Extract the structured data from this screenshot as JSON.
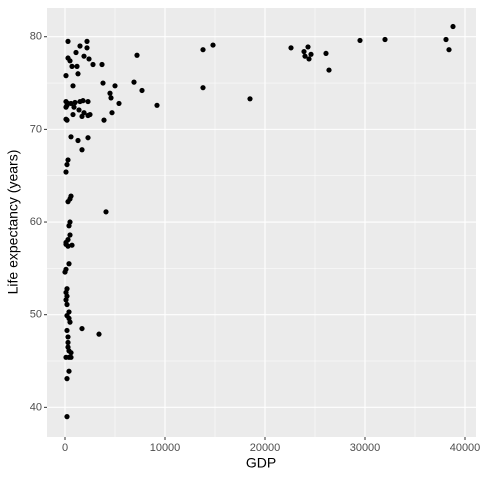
{
  "chart_data": {
    "type": "scatter",
    "x_label": "GDP",
    "y_label": "Life expectancy (years)",
    "color": "#000000",
    "grid": true,
    "xlim": [
      -1800,
      41100
    ],
    "ylim": [
      36.8,
      83.1
    ],
    "xticks": [
      0,
      10000,
      20000,
      30000,
      40000
    ],
    "yticks": [
      40,
      50,
      60,
      70,
      80
    ],
    "x": [
      38800,
      38100,
      38400,
      32000,
      29500,
      26400,
      26100,
      24600,
      24300,
      24400,
      23900,
      24000,
      22600,
      18500,
      14800,
      13800,
      13800,
      9200,
      7700,
      7200,
      6900,
      5400,
      5000,
      4600,
      4500,
      4700,
      3700,
      3800,
      3900,
      4100,
      3400,
      1700,
      2800,
      2300,
      2500,
      2200,
      2200,
      2400,
      2300,
      2300,
      1500,
      1900,
      1100,
      1200,
      1300,
      1800,
      1500,
      1400,
      1700,
      1900,
      1700,
      1300,
      1000,
      900,
      800,
      800,
      600,
      600,
      700,
      500,
      300,
      300,
      100,
      100,
      100,
      200,
      100,
      200,
      300,
      300,
      200,
      100,
      600,
      500,
      300,
      500,
      400,
      500,
      300,
      100,
      300,
      700,
      100,
      400,
      100,
      0,
      200,
      100,
      200,
      100,
      200,
      400,
      200,
      400,
      500,
      200,
      300,
      300,
      300,
      400,
      600,
      100,
      400,
      600,
      400,
      200,
      200
    ],
    "y": [
      81.1,
      79.7,
      78.6,
      79.7,
      79.6,
      76.4,
      78.2,
      78.1,
      78.9,
      77.6,
      78.4,
      77.9,
      78.8,
      73.3,
      79.1,
      78.6,
      74.5,
      72.6,
      74.2,
      78.0,
      75.1,
      72.8,
      74.7,
      73.4,
      73.9,
      71.8,
      77.0,
      75.0,
      71.0,
      61.1,
      47.9,
      48.5,
      77.0,
      71.5,
      71.6,
      79.5,
      78.8,
      77.6,
      73.0,
      69.1,
      79.0,
      77.9,
      78.3,
      76.8,
      76.0,
      73.1,
      73.0,
      72.1,
      71.4,
      71.8,
      67.8,
      68.8,
      72.9,
      72.4,
      71.6,
      74.7,
      72.8,
      69.2,
      76.8,
      77.4,
      77.7,
      79.5,
      75.8,
      73.0,
      72.4,
      72.6,
      71.1,
      71.0,
      72.8,
      66.7,
      66.2,
      65.4,
      62.8,
      62.5,
      62.2,
      60.0,
      59.6,
      58.6,
      58.1,
      57.8,
      57.4,
      57.5,
      57.6,
      55.5,
      54.9,
      54.6,
      52.8,
      52.4,
      52.0,
      51.6,
      51.1,
      50.3,
      49.9,
      49.6,
      49.2,
      48.3,
      47.6,
      47.0,
      46.5,
      46.1,
      45.9,
      45.4,
      45.4,
      45.4,
      43.9,
      43.1,
      39.0
    ]
  }
}
